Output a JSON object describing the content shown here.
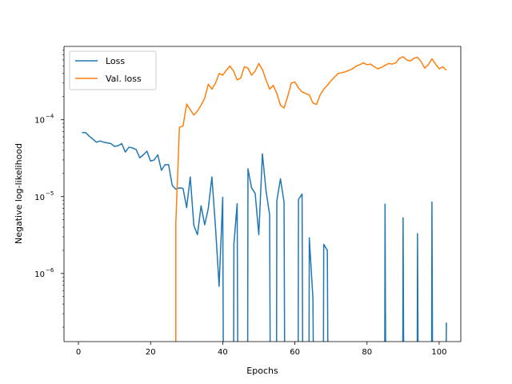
{
  "chart_data": {
    "type": "line",
    "title": "",
    "xlabel": "Epochs",
    "ylabel": "Negative log-likelihood",
    "yscale": "log",
    "xlim": [
      -4,
      106
    ],
    "ylim": [
      1.3e-07,
      0.0009
    ],
    "x_ticks": [
      0,
      20,
      40,
      60,
      80,
      100
    ],
    "x_tick_labels": [
      "0",
      "20",
      "40",
      "60",
      "80",
      "100"
    ],
    "y_ticks": [
      1e-06,
      1e-05,
      0.0001
    ],
    "y_tick_labels": [
      "10",
      "10",
      "10"
    ],
    "y_tick_exponents": [
      "−6",
      "−5",
      "−4"
    ],
    "grid": false,
    "legend_position": "top-left",
    "series": [
      {
        "name": "Loss",
        "color": "#1f77b4",
        "points": [
          [
            1,
            6.8e-05
          ],
          [
            2,
            6.8e-05
          ],
          [
            3,
            6.1e-05
          ],
          [
            4,
            5.6e-05
          ],
          [
            5,
            5.1e-05
          ],
          [
            6,
            5.3e-05
          ],
          [
            7,
            5.1e-05
          ],
          [
            8,
            5e-05
          ],
          [
            9,
            4.9e-05
          ],
          [
            10,
            4.5e-05
          ],
          [
            11,
            4.6e-05
          ],
          [
            12,
            4.9e-05
          ],
          [
            13,
            3.8e-05
          ],
          [
            14,
            4.4e-05
          ],
          [
            15,
            4.3e-05
          ],
          [
            16,
            4.1e-05
          ],
          [
            17,
            3.2e-05
          ],
          [
            18,
            3.5e-05
          ],
          [
            19,
            3.9e-05
          ],
          [
            20,
            2.9e-05
          ],
          [
            21,
            3e-05
          ],
          [
            22,
            3.5e-05
          ],
          [
            23,
            2.2e-05
          ],
          [
            24,
            2.6e-05
          ],
          [
            25,
            2.6e-05
          ],
          [
            26,
            1.4e-05
          ],
          [
            27,
            1.25e-05
          ],
          [
            28,
            1.3e-05
          ],
          [
            29,
            1.28e-05
          ],
          [
            30,
            7.2e-06
          ],
          [
            31,
            1.8e-05
          ],
          [
            32,
            4.2e-06
          ],
          [
            33,
            3.2e-06
          ],
          [
            34,
            7.6e-06
          ],
          [
            35,
            4.3e-06
          ],
          [
            36,
            7e-06
          ],
          [
            37,
            1.8e-05
          ],
          [
            38,
            4e-06
          ],
          [
            39,
            6.8e-07
          ],
          [
            40,
            9.8e-06
          ],
          [
            40.2,
            1e-09
          ],
          [
            43,
            1e-09
          ],
          [
            43.1,
            2.4e-06
          ],
          [
            44,
            8.1e-06
          ],
          [
            44.2,
            1e-09
          ],
          [
            46.9,
            1e-09
          ],
          [
            47,
            2.3e-05
          ],
          [
            48,
            1.3e-05
          ],
          [
            49,
            1.1e-05
          ],
          [
            50,
            3.2e-06
          ],
          [
            51,
            3.6e-05
          ],
          [
            52,
            1.2e-05
          ],
          [
            53,
            5.8e-06
          ],
          [
            53.2,
            1e-09
          ],
          [
            54.9,
            1e-09
          ],
          [
            55,
            8.8e-06
          ],
          [
            56,
            1.7e-05
          ],
          [
            57,
            8.5e-06
          ],
          [
            57.2,
            1e-09
          ],
          [
            60.9,
            1e-09
          ],
          [
            61,
            9.2e-06
          ],
          [
            62,
            1.08e-05
          ],
          [
            62.2,
            1e-09
          ],
          [
            63.9,
            1e-09
          ],
          [
            64,
            2.9e-06
          ],
          [
            65,
            4.8e-07
          ],
          [
            65.2,
            1e-09
          ],
          [
            67.9,
            1e-09
          ],
          [
            68,
            2.4e-06
          ],
          [
            69,
            2e-06
          ],
          [
            69.2,
            1e-09
          ],
          [
            84.9,
            1e-09
          ],
          [
            85,
            8e-06
          ],
          [
            85.2,
            1e-09
          ],
          [
            89.9,
            1e-09
          ],
          [
            90,
            5.3e-06
          ],
          [
            90.2,
            1e-09
          ],
          [
            93.9,
            1e-09
          ],
          [
            94,
            3.3e-06
          ],
          [
            94.2,
            1e-09
          ],
          [
            97.9,
            1e-09
          ],
          [
            98,
            8.5e-06
          ],
          [
            98.2,
            1e-09
          ],
          [
            101.9,
            1e-09
          ],
          [
            102,
            2.3e-07
          ]
        ]
      },
      {
        "name": "Val. loss",
        "color": "#ff7f0e",
        "points": [
          [
            27,
            1e-09
          ],
          [
            27,
            4.5e-06
          ],
          [
            28,
            8e-05
          ],
          [
            29,
            8.3e-05
          ],
          [
            30,
            0.00016
          ],
          [
            31,
            0.000135
          ],
          [
            32,
            0.000115
          ],
          [
            33,
            0.00013
          ],
          [
            34,
            0.000155
          ],
          [
            35,
            0.00019
          ],
          [
            36,
            0.00029
          ],
          [
            37,
            0.00025
          ],
          [
            38,
            0.0003
          ],
          [
            39,
            0.0004
          ],
          [
            40,
            0.00038
          ],
          [
            41,
            0.00044
          ],
          [
            42,
            0.0005
          ],
          [
            43,
            0.00043
          ],
          [
            44,
            0.00033
          ],
          [
            45,
            0.00035
          ],
          [
            46,
            0.00049
          ],
          [
            47,
            0.00047
          ],
          [
            48,
            0.00038
          ],
          [
            49,
            0.00043
          ],
          [
            50,
            0.00054
          ],
          [
            51,
            0.00045
          ],
          [
            52,
            0.00033
          ],
          [
            53,
            0.00025
          ],
          [
            54,
            0.00028
          ],
          [
            55,
            0.00022
          ],
          [
            56,
            0.000155
          ],
          [
            57,
            0.000142
          ],
          [
            58,
            0.0002
          ],
          [
            59,
            0.0003
          ],
          [
            60,
            0.00031
          ],
          [
            61,
            0.00026
          ],
          [
            62,
            0.00023
          ],
          [
            63,
            0.00022
          ],
          [
            64,
            0.00021
          ],
          [
            65,
            0.000165
          ],
          [
            66,
            0.000158
          ],
          [
            67,
            0.00021
          ],
          [
            68,
            0.00025
          ],
          [
            69,
            0.00028
          ],
          [
            70,
            0.00032
          ],
          [
            71,
            0.00036
          ],
          [
            72,
            0.0004
          ],
          [
            73,
            0.00041
          ],
          [
            74,
            0.00042
          ],
          [
            75,
            0.00044
          ],
          [
            76,
            0.00046
          ],
          [
            77,
            0.0005
          ],
          [
            78,
            0.00052
          ],
          [
            79,
            0.00055
          ],
          [
            80,
            0.00052
          ],
          [
            81,
            0.00053
          ],
          [
            82,
            0.00049
          ],
          [
            83,
            0.00046
          ],
          [
            84,
            0.00048
          ],
          [
            85,
            0.00051
          ],
          [
            86,
            0.00054
          ],
          [
            87,
            0.00053
          ],
          [
            88,
            0.00055
          ],
          [
            89,
            0.00063
          ],
          [
            90,
            0.00066
          ],
          [
            91,
            0.0006
          ],
          [
            92,
            0.00058
          ],
          [
            93,
            0.00063
          ],
          [
            94,
            0.00065
          ],
          [
            95,
            0.00057
          ],
          [
            96,
            0.00047
          ],
          [
            97,
            0.00052
          ],
          [
            98,
            0.00062
          ],
          [
            99,
            0.00053
          ],
          [
            100,
            0.00046
          ],
          [
            101,
            0.00049
          ],
          [
            102,
            0.00044
          ]
        ]
      }
    ]
  }
}
